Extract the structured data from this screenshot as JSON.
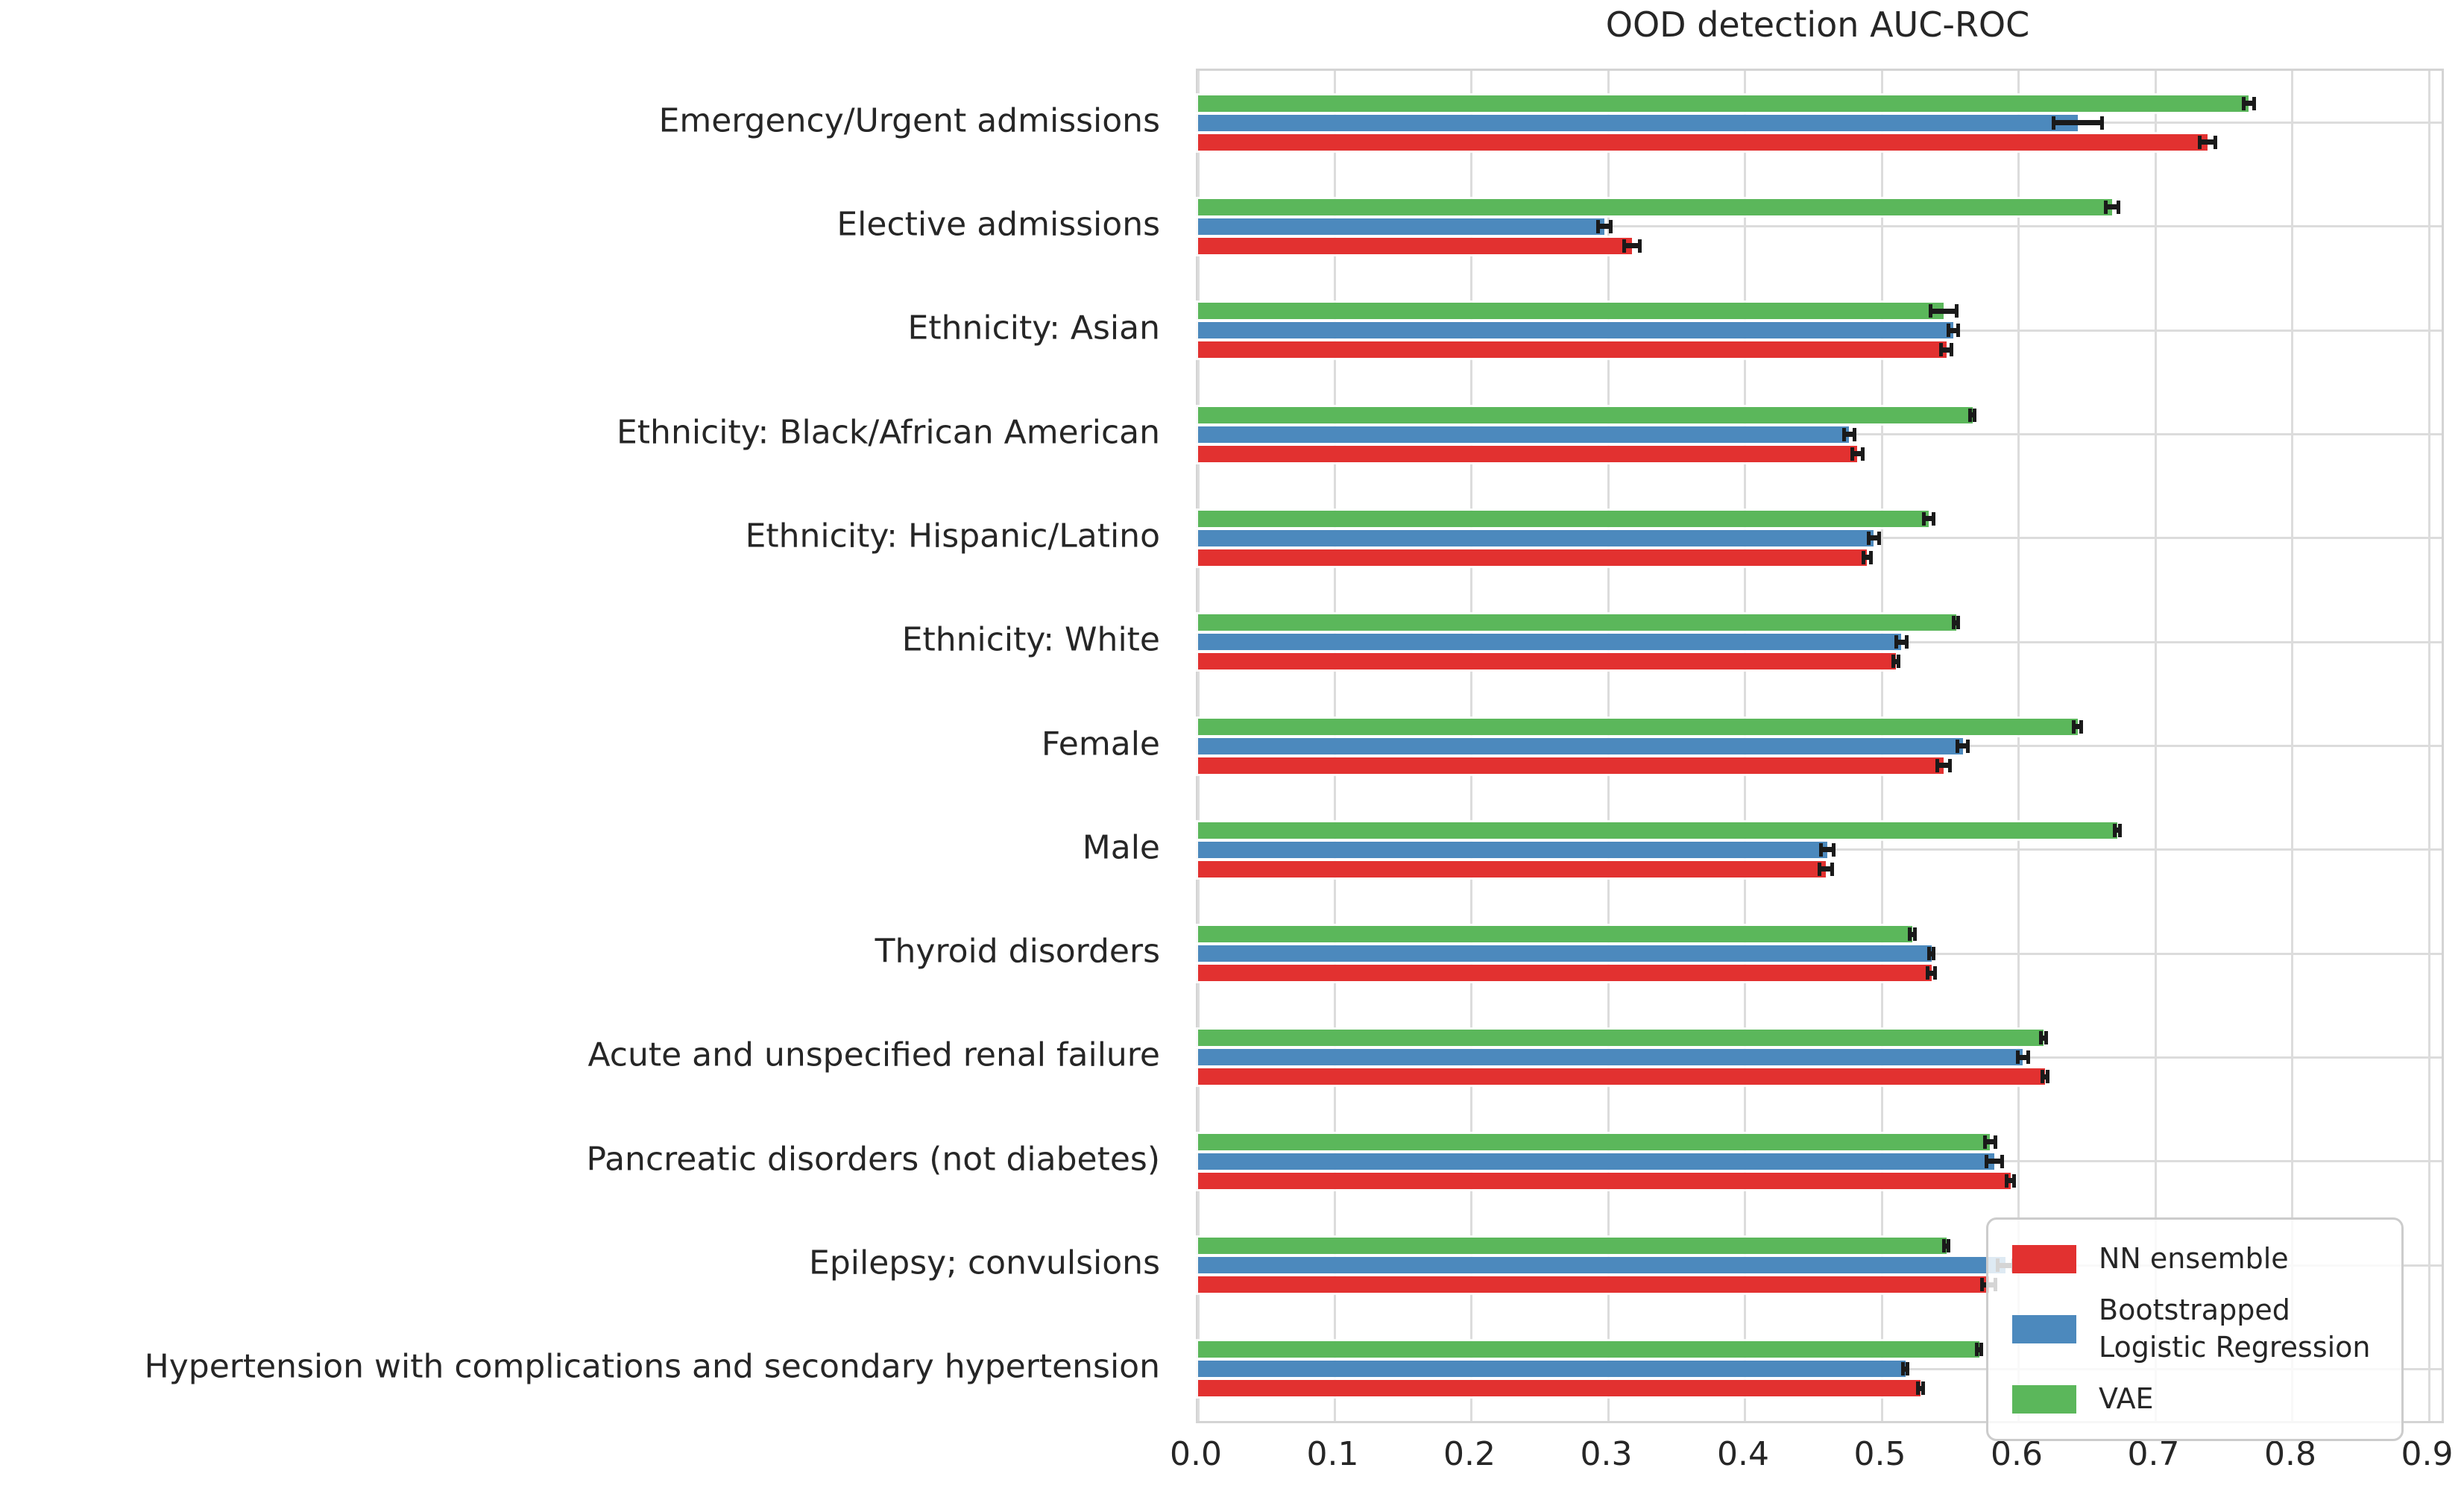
{
  "chart_data": {
    "type": "bar",
    "orientation": "horizontal",
    "title": "OOD detection AUC-ROC",
    "categories": [
      "Emergency/Urgent admissions",
      "Elective admissions",
      "Ethnicity: Asian",
      "Ethnicity: Black/African American",
      "Ethnicity: Hispanic/Latino",
      "Ethnicity: White",
      "Female",
      "Male",
      "Thyroid disorders",
      "Acute and unspecified renal failure",
      "Pancreatic disorders (not diabetes)",
      "Epilepsy; convulsions",
      "Hypertension with complications and secondary hypertension"
    ],
    "series": [
      {
        "name": "NN ensemble",
        "legend_label": "NN ensemble",
        "color": "#e23130",
        "values": [
          0.738,
          0.317,
          0.547,
          0.482,
          0.489,
          0.51,
          0.545,
          0.459,
          0.536,
          0.619,
          0.594,
          0.578,
          0.528
        ],
        "errors": [
          0.006,
          0.006,
          0.004,
          0.004,
          0.003,
          0.002,
          0.005,
          0.005,
          0.003,
          0.002,
          0.003,
          0.005,
          0.002
        ]
      },
      {
        "name": "Bootstrapped Logistic Regression",
        "legend_label": "Bootstrapped\nLogistic Regression",
        "color": "#4c89bd",
        "values": [
          0.643,
          0.297,
          0.552,
          0.476,
          0.494,
          0.514,
          0.559,
          0.46,
          0.536,
          0.603,
          0.582,
          0.59,
          0.517
        ],
        "errors": [
          0.018,
          0.005,
          0.004,
          0.004,
          0.004,
          0.004,
          0.004,
          0.005,
          0.002,
          0.004,
          0.006,
          0.006,
          0.002
        ]
      },
      {
        "name": "VAE",
        "legend_label": "VAE",
        "color": "#5bb75b",
        "values": [
          0.768,
          0.668,
          0.545,
          0.566,
          0.534,
          0.554,
          0.643,
          0.672,
          0.522,
          0.618,
          0.579,
          0.547,
          0.571
        ],
        "errors": [
          0.004,
          0.005,
          0.01,
          0.002,
          0.004,
          0.002,
          0.003,
          0.002,
          0.002,
          0.002,
          0.004,
          0.002,
          0.002
        ]
      }
    ],
    "bar_display_order_top_to_bottom": [
      "VAE",
      "Bootstrapped Logistic Regression",
      "NN ensemble"
    ],
    "x_tick_labels": [
      "0.0",
      "0.1",
      "0.2",
      "0.3",
      "0.4",
      "0.5",
      "0.6",
      "0.7",
      "0.8",
      "0.9"
    ],
    "x_ticks": [
      0.0,
      0.1,
      0.2,
      0.3,
      0.4,
      0.5,
      0.6,
      0.7,
      0.8,
      0.9
    ],
    "xlim": [
      0,
      0.909
    ],
    "grid": true,
    "error_bars": true,
    "legend_position": "lower right",
    "colors": {
      "background": "#ffffff",
      "grid": "#dcdcdc",
      "axis_border": "#d4d4d4",
      "text": "#262626",
      "error_bar": "#1a1a1a",
      "legend_border": "#cccccc"
    }
  }
}
